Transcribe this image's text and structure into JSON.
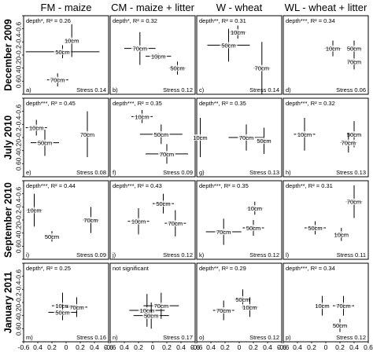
{
  "column_titles": [
    "FM - maize",
    "CM - maize + litter",
    "W - wheat",
    "WL - wheat + litter"
  ],
  "row_titles": [
    "December 2009",
    "July 2010",
    "September 2010",
    "January 2011"
  ],
  "x_tick_labels": [
    "-0.6",
    "0.4",
    "0.2",
    "0",
    "0.2",
    "0.4",
    "0.6"
  ],
  "y_tick_labels": [
    "0.6",
    "0.4",
    "0.2",
    "0",
    "-0.2",
    "-0.4",
    "-0.6"
  ],
  "chart_data": {
    "type": "scatter",
    "xlim": [
      -0.6,
      0.6
    ],
    "ylim": [
      -0.6,
      0.6
    ],
    "panels": [
      {
        "id": "a",
        "letter": "a)",
        "annotation": "depth*, R² = 0.26",
        "stress": "Stress 0.14",
        "points": [
          {
            "label": "10cm",
            "x": 0.08,
            "y": 0.22,
            "xerr": 0.1,
            "yerr": 0.25
          },
          {
            "label": "50cm",
            "x": -0.05,
            "y": 0.05,
            "xerr": 0.52,
            "yerr": 0.1
          },
          {
            "label": "70cm",
            "x": -0.12,
            "y": -0.38,
            "xerr": 0.15,
            "yerr": 0.1
          }
        ]
      },
      {
        "id": "b",
        "letter": "b)",
        "annotation": "depth*, R² = 0.32",
        "stress": "Stress 0.12",
        "points": [
          {
            "label": "70cm",
            "x": -0.18,
            "y": 0.1,
            "xerr": 0.22,
            "yerr": 0.25
          },
          {
            "label": "10cm",
            "x": 0.08,
            "y": -0.02,
            "xerr": 0.18,
            "yerr": 0.05
          },
          {
            "label": "50cm",
            "x": 0.35,
            "y": -0.2,
            "xerr": 0.12,
            "yerr": 0.1
          }
        ]
      },
      {
        "id": "c",
        "letter": "c)",
        "annotation": "depth**, R² = 0.31",
        "stress": "Stress 0.14",
        "points": [
          {
            "label": "10cm",
            "x": -0.02,
            "y": 0.35,
            "xerr": 0.12,
            "yerr": 0.1
          },
          {
            "label": "50cm",
            "x": -0.15,
            "y": 0.15,
            "xerr": 0.3,
            "yerr": 0.25
          },
          {
            "label": "70cm",
            "x": 0.32,
            "y": -0.2,
            "xerr": 0.12,
            "yerr": 0.4
          }
        ]
      },
      {
        "id": "d",
        "letter": "d)",
        "annotation": "depth***, R² = 0.34",
        "stress": "Stress 0.06",
        "points": [
          {
            "label": "10cm",
            "x": 0.1,
            "y": 0.1,
            "xerr": 0.12,
            "yerr": 0.12
          },
          {
            "label": "50cm",
            "x": 0.4,
            "y": 0.1,
            "xerr": 0.1,
            "yerr": 0.12
          },
          {
            "label": "70cm",
            "x": 0.4,
            "y": -0.1,
            "xerr": 0.1,
            "yerr": 0.12
          }
        ]
      },
      {
        "id": "e",
        "letter": "e)",
        "annotation": "depth***, R² = 0.45",
        "stress": "Stress 0.08",
        "points": [
          {
            "label": "10cm",
            "x": -0.42,
            "y": 0.15,
            "xerr": 0.15,
            "yerr": 0.12
          },
          {
            "label": "50cm",
            "x": -0.3,
            "y": -0.08,
            "xerr": 0.2,
            "yerr": 0.2
          },
          {
            "label": "70cm",
            "x": 0.3,
            "y": 0.05,
            "xerr": 0.05,
            "yerr": 0.35
          }
        ]
      },
      {
        "id": "f",
        "letter": "f)",
        "annotation": "depth***, R² = 0.35",
        "stress": "Stress 0.09",
        "points": [
          {
            "label": "10cm",
            "x": -0.15,
            "y": 0.32,
            "xerr": 0.15,
            "yerr": 0.1
          },
          {
            "label": "50cm",
            "x": 0.12,
            "y": 0.05,
            "xerr": 0.3,
            "yerr": 0.15
          },
          {
            "label": "70cm",
            "x": 0.2,
            "y": -0.25,
            "xerr": 0.3,
            "yerr": 0.15
          }
        ]
      },
      {
        "id": "g",
        "letter": "g)",
        "annotation": "depth**, R² = 0.35",
        "stress": "Stress 0.13",
        "points": [
          {
            "label": "10cm",
            "x": -0.55,
            "y": 0.0,
            "xerr": 0.08,
            "yerr": 0.3
          },
          {
            "label": "70cm",
            "x": 0.1,
            "y": 0.0,
            "xerr": 0.25,
            "yerr": 0.2
          },
          {
            "label": "50cm",
            "x": 0.35,
            "y": -0.05,
            "xerr": 0.1,
            "yerr": 0.2
          }
        ]
      },
      {
        "id": "h",
        "letter": "h)",
        "annotation": "depth***, R² = 0.32",
        "stress": "Stress 0.13",
        "points": [
          {
            "label": "10cm",
            "x": -0.3,
            "y": 0.05,
            "xerr": 0.15,
            "yerr": 0.25
          },
          {
            "label": "50cm",
            "x": 0.4,
            "y": 0.05,
            "xerr": 0.1,
            "yerr": 0.2
          },
          {
            "label": "70cm",
            "x": 0.32,
            "y": -0.08,
            "xerr": 0.12,
            "yerr": 0.15
          }
        ]
      },
      {
        "id": "i",
        "letter": "i)",
        "annotation": "depth***, R² = 0.44",
        "stress": "Stress 0.09",
        "points": [
          {
            "label": "10cm",
            "x": -0.45,
            "y": 0.15,
            "xerr": 0.12,
            "yerr": 0.25
          },
          {
            "label": "50cm",
            "x": -0.2,
            "y": -0.25,
            "xerr": 0.1,
            "yerr": 0.08
          },
          {
            "label": "70cm",
            "x": 0.35,
            "y": 0.0,
            "xerr": 0.12,
            "yerr": 0.2
          }
        ]
      },
      {
        "id": "j",
        "letter": "j)",
        "annotation": "depth***, R² = 0.43",
        "stress": "Stress 0.12",
        "points": [
          {
            "label": "50cm",
            "x": 0.15,
            "y": 0.25,
            "xerr": 0.15,
            "yerr": 0.15
          },
          {
            "label": "10cm",
            "x": -0.2,
            "y": -0.02,
            "xerr": 0.15,
            "yerr": 0.2
          },
          {
            "label": "70cm",
            "x": 0.32,
            "y": -0.05,
            "xerr": 0.15,
            "yerr": 0.2
          }
        ]
      },
      {
        "id": "k",
        "letter": "k)",
        "annotation": "depth***, R² = 0.35",
        "stress": "Stress 0.12",
        "points": [
          {
            "label": "10cm",
            "x": 0.22,
            "y": 0.18,
            "xerr": 0.12,
            "yerr": 0.1
          },
          {
            "label": "70cm",
            "x": -0.22,
            "y": -0.18,
            "xerr": 0.25,
            "yerr": 0.2
          },
          {
            "label": "50cm",
            "x": 0.2,
            "y": -0.12,
            "xerr": 0.15,
            "yerr": 0.12
          }
        ]
      },
      {
        "id": "l",
        "letter": "l)",
        "annotation": "depth**, R² = 0.31",
        "stress": "Stress 0.11",
        "points": [
          {
            "label": "70cm",
            "x": 0.4,
            "y": 0.28,
            "xerr": 0.12,
            "yerr": 0.25
          },
          {
            "label": "50cm",
            "x": -0.15,
            "y": -0.12,
            "xerr": 0.15,
            "yerr": 0.1
          },
          {
            "label": "10cm",
            "x": 0.22,
            "y": -0.22,
            "xerr": 0.1,
            "yerr": 0.1
          }
        ]
      },
      {
        "id": "m",
        "letter": "m)",
        "annotation": "depth*, R² = 0.25",
        "stress": "Stress 0.16",
        "points": [
          {
            "label": "10cm",
            "x": -0.05,
            "y": -0.05,
            "xerr": 0.15,
            "yerr": 0.2
          },
          {
            "label": "70cm",
            "x": 0.15,
            "y": -0.07,
            "xerr": 0.15,
            "yerr": 0.15
          },
          {
            "label": "50cm",
            "x": -0.05,
            "y": -0.15,
            "xerr": 0.2,
            "yerr": 0.12
          }
        ]
      },
      {
        "id": "n",
        "letter": "n)",
        "annotation": "not significant",
        "stress": "Stress 0.17",
        "points": [
          {
            "label": "70cm",
            "x": 0.12,
            "y": -0.05,
            "xerr": 0.25,
            "yerr": 0.2
          },
          {
            "label": "10cm",
            "x": -0.08,
            "y": -0.12,
            "xerr": 0.25,
            "yerr": 0.25
          },
          {
            "label": "50cm",
            "x": -0.02,
            "y": -0.2,
            "xerr": 0.25,
            "yerr": 0.2
          }
        ]
      },
      {
        "id": "o",
        "letter": "o)",
        "annotation": "depth**, R² = 0.29",
        "stress": "Stress 0.12",
        "points": [
          {
            "label": "50cm",
            "x": 0.05,
            "y": 0.05,
            "xerr": 0.12,
            "yerr": 0.15
          },
          {
            "label": "10cm",
            "x": 0.15,
            "y": -0.07,
            "xerr": 0.12,
            "yerr": 0.15
          },
          {
            "label": "70cm",
            "x": -0.22,
            "y": -0.12,
            "xerr": 0.15,
            "yerr": 0.15
          }
        ]
      },
      {
        "id": "p",
        "letter": "p)",
        "annotation": "depth***, R² = 0.34",
        "stress": "Stress 0.12",
        "points": [
          {
            "label": "10cm",
            "x": -0.05,
            "y": -0.05,
            "xerr": 0.1,
            "yerr": 0.15
          },
          {
            "label": "70cm",
            "x": 0.25,
            "y": -0.05,
            "xerr": 0.15,
            "yerr": 0.15
          },
          {
            "label": "50cm",
            "x": 0.2,
            "y": -0.35,
            "xerr": 0.1,
            "yerr": 0.1
          }
        ]
      }
    ]
  }
}
